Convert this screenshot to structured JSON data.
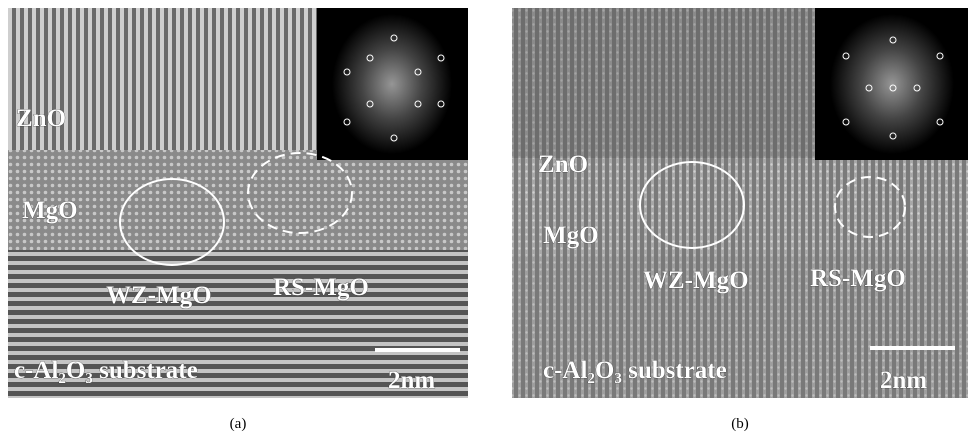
{
  "panels": [
    {
      "caption": "(a)",
      "labels": {
        "top": "ZnO",
        "mid": "MgO",
        "wz": "WZ-MgO",
        "rs": "RS-MgO",
        "substrate": "c-Al₂O₃ substrate",
        "scale": "2nm"
      }
    },
    {
      "caption": "(b)",
      "labels": {
        "top": "ZnO",
        "mid": "MgO",
        "wz": "WZ-MgO",
        "rs": "RS-MgO",
        "substrate": "c-Al₂O₃ substrate",
        "scale": "2nm"
      }
    }
  ]
}
